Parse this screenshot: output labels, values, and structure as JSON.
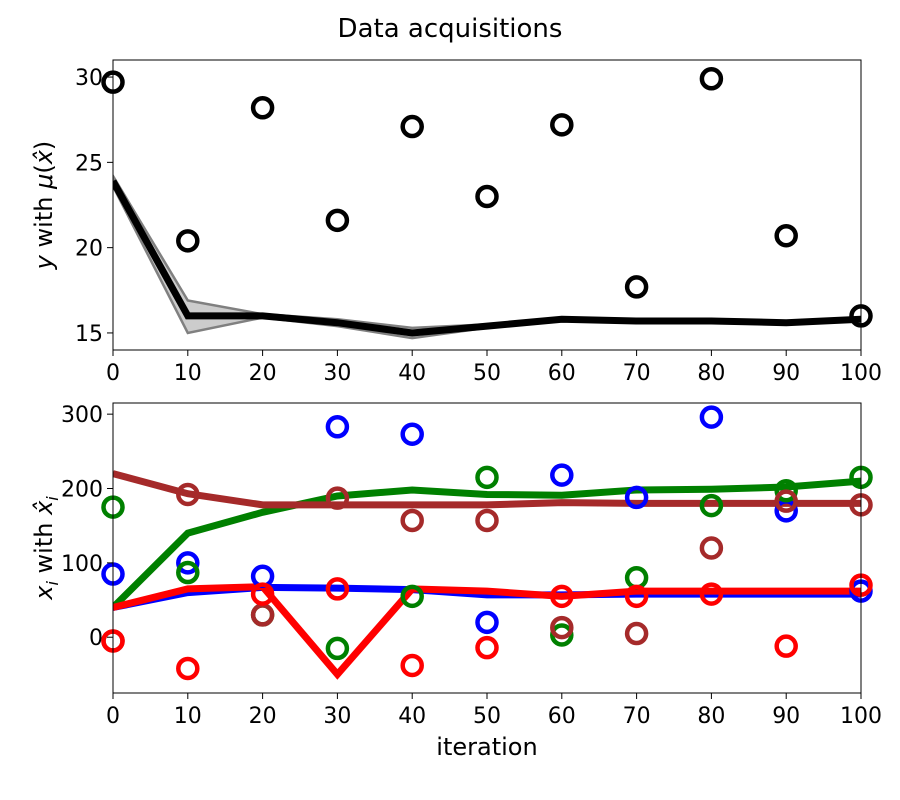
{
  "title": "Data acquisitions",
  "chart_data": [
    {
      "type": "line",
      "ylabel": "y with μ(x̂)",
      "xlabel": "",
      "xlim": [
        0,
        100
      ],
      "ylim": [
        14,
        31
      ],
      "xticks": [
        0,
        10,
        20,
        30,
        40,
        50,
        60,
        70,
        80,
        90,
        100
      ],
      "yticks": [
        15,
        20,
        25,
        30
      ],
      "grid": false,
      "band": {
        "color": "#808080",
        "x": [
          0,
          10,
          20,
          30,
          40,
          50,
          60,
          70,
          80,
          90,
          100
        ],
        "upper": [
          24.2,
          16.9,
          16.1,
          15.8,
          15.3,
          15.5,
          15.8,
          15.7,
          15.8,
          15.6,
          15.8
        ],
        "lower": [
          23.6,
          15.0,
          15.9,
          15.4,
          14.7,
          15.3,
          15.7,
          15.6,
          15.7,
          15.6,
          15.8
        ]
      },
      "series": [
        {
          "kind": "line",
          "color": "#000000",
          "x": [
            0,
            10,
            20,
            30,
            40,
            50,
            60,
            70,
            80,
            90,
            100
          ],
          "y": [
            23.9,
            16.0,
            16.0,
            15.6,
            15.0,
            15.4,
            15.8,
            15.7,
            15.7,
            15.6,
            15.8
          ]
        },
        {
          "kind": "scatter",
          "color": "#000000",
          "x": [
            0,
            10,
            20,
            30,
            40,
            50,
            60,
            70,
            80,
            90,
            100
          ],
          "y": [
            29.7,
            20.4,
            28.2,
            21.6,
            27.1,
            23.0,
            27.2,
            17.7,
            29.9,
            20.7,
            16.0
          ]
        }
      ]
    },
    {
      "type": "line",
      "ylabel": "x_i with x̂_i",
      "xlabel": "iteration",
      "xlim": [
        0,
        100
      ],
      "ylim": [
        -75,
        315
      ],
      "xticks": [
        0,
        10,
        20,
        30,
        40,
        50,
        60,
        70,
        80,
        90,
        100
      ],
      "yticks": [
        0,
        100,
        200,
        300
      ],
      "grid": false,
      "series": [
        {
          "kind": "line",
          "color": "#0000ff",
          "x": [
            0,
            10,
            20,
            30,
            40,
            50,
            60,
            70,
            80,
            90,
            100
          ],
          "y": [
            40,
            60,
            67,
            66,
            64,
            57,
            57,
            58,
            58,
            58,
            58
          ]
        },
        {
          "kind": "line",
          "color": "#008000",
          "x": [
            0,
            10,
            20,
            30,
            40,
            50,
            60,
            70,
            80,
            90,
            100
          ],
          "y": [
            40,
            140,
            168,
            190,
            198,
            192,
            191,
            198,
            199,
            202,
            210
          ]
        },
        {
          "kind": "line",
          "color": "#a52a2a",
          "x": [
            0,
            10,
            20,
            30,
            40,
            50,
            60,
            70,
            80,
            90,
            100
          ],
          "y": [
            220,
            193,
            178,
            178,
            178,
            178,
            181,
            180,
            180,
            180,
            180
          ]
        },
        {
          "kind": "line",
          "color": "#ff0000",
          "x": [
            0,
            10,
            20,
            30,
            40,
            50,
            60,
            70,
            80,
            90,
            100
          ],
          "y": [
            40,
            65,
            68,
            -50,
            65,
            62,
            55,
            62,
            62,
            62,
            62
          ]
        },
        {
          "kind": "scatter",
          "color": "#0000ff",
          "x": [
            0,
            10,
            20,
            30,
            40,
            50,
            60,
            70,
            80,
            90,
            100
          ],
          "y": [
            85,
            100,
            82,
            283,
            273,
            20,
            218,
            188,
            296,
            170,
            62
          ]
        },
        {
          "kind": "scatter",
          "color": "#008000",
          "x": [
            0,
            10,
            20,
            30,
            40,
            50,
            60,
            70,
            80,
            90,
            100
          ],
          "y": [
            175,
            87,
            30,
            -15,
            55,
            215,
            3,
            80,
            177,
            197,
            215
          ]
        },
        {
          "kind": "scatter",
          "color": "#a52a2a",
          "x": [
            0,
            10,
            20,
            30,
            40,
            50,
            60,
            70,
            80,
            90,
            100
          ],
          "y": [
            -5,
            192,
            30,
            187,
            157,
            157,
            13,
            5,
            120,
            183,
            178
          ]
        },
        {
          "kind": "scatter",
          "color": "#ff0000",
          "x": [
            0,
            10,
            20,
            30,
            40,
            50,
            60,
            70,
            80,
            90,
            100
          ],
          "y": [
            -5,
            -42,
            58,
            65,
            -38,
            -14,
            55,
            55,
            58,
            -12,
            70
          ]
        }
      ]
    }
  ]
}
